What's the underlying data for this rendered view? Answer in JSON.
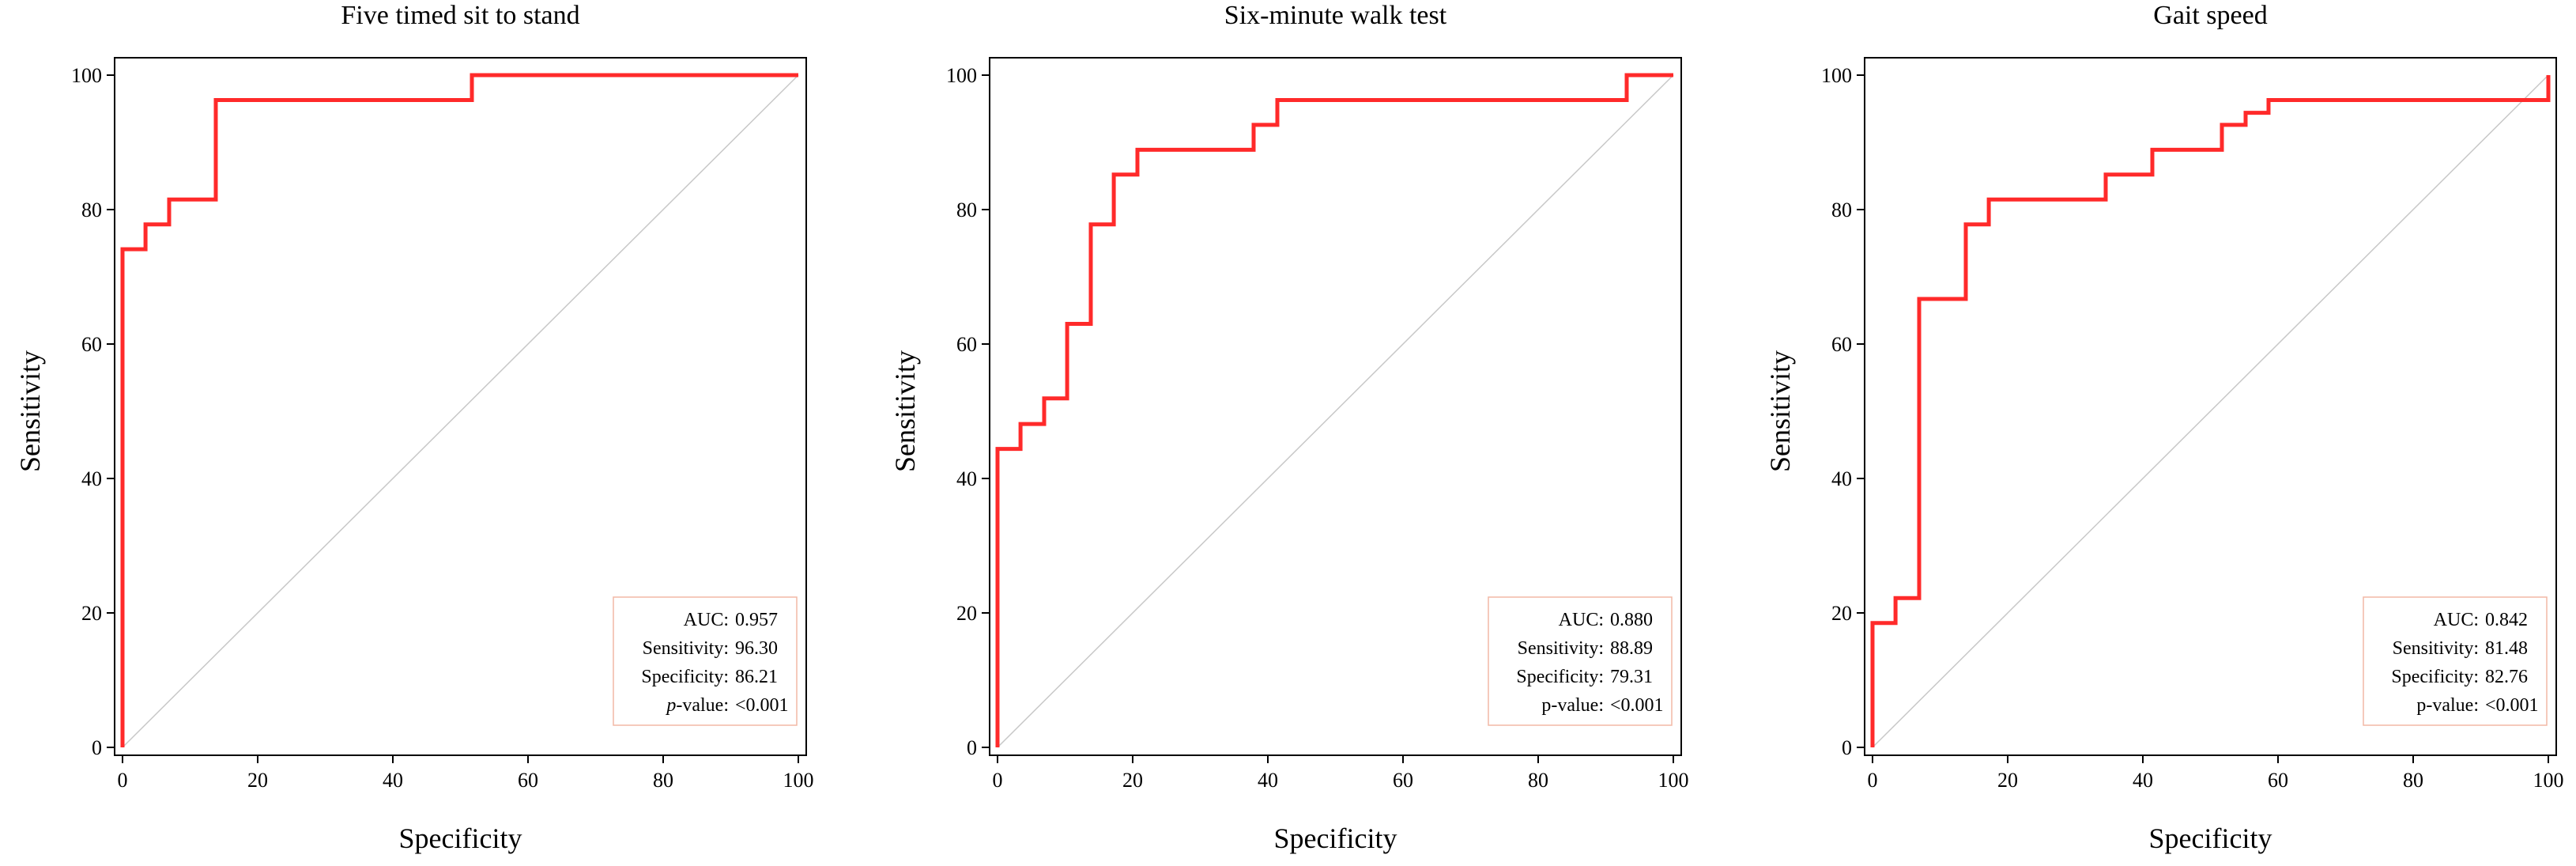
{
  "colors": {
    "roc_line": "#ff2a2a",
    "legend_border": "#f2b9a6",
    "diagonal": "#c8c8c8"
  },
  "chart_data": [
    {
      "type": "line",
      "title": "Five timed sit to stand",
      "xlabel": "Specificity",
      "ylabel": "Sensitivity",
      "xlim": [
        0,
        100
      ],
      "ylim": [
        0,
        100
      ],
      "xticks": [
        "0",
        "20",
        "40",
        "60",
        "80",
        "100"
      ],
      "yticks": [
        "0",
        "20",
        "40",
        "60",
        "80",
        "100"
      ],
      "reference_line": "diagonal",
      "series": [
        {
          "name": "ROC",
          "x": [
            0,
            0,
            0.5,
            0.5,
            3.4,
            3.4,
            6.9,
            6.9,
            13.8,
            13.8,
            51.7,
            51.7,
            100
          ],
          "y": [
            0,
            74.1,
            74.1,
            74.1,
            74.1,
            77.8,
            77.8,
            81.5,
            81.5,
            96.3,
            96.3,
            100,
            100
          ]
        }
      ],
      "legend": {
        "auc_label": "AUC:",
        "auc": "0.957",
        "sensitivity_label": "Sensitivity:",
        "sensitivity": "96.30",
        "specificity_label": "Specificity:",
        "specificity": "86.21",
        "p_italic": "p",
        "p_label": "-value:",
        "p_value": "<0.001",
        "placement": "bottom-right"
      }
    },
    {
      "type": "line",
      "title": "Six-minute walk test",
      "xlabel": "Specificity",
      "ylabel": "Sensitivity",
      "xlim": [
        0,
        100
      ],
      "ylim": [
        0,
        100
      ],
      "xticks": [
        "0",
        "20",
        "40",
        "60",
        "80",
        "100"
      ],
      "yticks": [
        "0",
        "20",
        "40",
        "60",
        "80",
        "100"
      ],
      "reference_line": "diagonal",
      "series": [
        {
          "name": "ROC",
          "x": [
            0,
            0,
            3.4,
            3.4,
            6.9,
            6.9,
            10.3,
            10.3,
            13.8,
            13.8,
            17.2,
            17.2,
            20.7,
            20.7,
            37.9,
            37.9,
            41.4,
            41.4,
            93.1,
            93.1,
            100
          ],
          "y": [
            0,
            44.4,
            44.4,
            48.1,
            48.1,
            51.9,
            51.9,
            63.0,
            63.0,
            77.8,
            77.8,
            85.2,
            85.2,
            88.9,
            88.9,
            92.6,
            92.6,
            96.3,
            96.3,
            100,
            100
          ]
        }
      ],
      "legend": {
        "auc_label": "AUC:",
        "auc": "0.880",
        "sensitivity_label": "Sensitivity:",
        "sensitivity": "88.89",
        "specificity_label": "Specificity:",
        "specificity": "79.31",
        "p_italic": "",
        "p_label": "p-value:",
        "p_value": "<0.001",
        "placement": "bottom-right"
      }
    },
    {
      "type": "line",
      "title": "Gait speed",
      "xlabel": "Specificity",
      "ylabel": "Sensitivity",
      "xlim": [
        0,
        100
      ],
      "ylim": [
        0,
        100
      ],
      "xticks": [
        "0",
        "20",
        "40",
        "60",
        "80",
        "100"
      ],
      "yticks": [
        "0",
        "20",
        "40",
        "60",
        "80",
        "100"
      ],
      "reference_line": "diagonal",
      "series": [
        {
          "name": "ROC",
          "x": [
            0,
            0,
            3.4,
            3.4,
            6.9,
            6.9,
            13.8,
            13.8,
            17.2,
            17.2,
            31.0,
            31.0,
            34.5,
            34.5,
            37.9,
            37.9,
            41.4,
            41.4,
            51.7,
            51.7,
            55.2,
            55.2,
            58.6,
            58.6,
            100,
            100
          ],
          "y": [
            0,
            18.5,
            18.5,
            22.2,
            22.2,
            66.7,
            66.7,
            77.8,
            77.8,
            81.5,
            81.5,
            81.5,
            81.5,
            85.2,
            85.2,
            85.2,
            85.2,
            88.9,
            88.9,
            92.6,
            92.6,
            94.4,
            94.4,
            96.3,
            96.3,
            100
          ]
        }
      ],
      "legend": {
        "auc_label": "AUC:",
        "auc": "0.842",
        "sensitivity_label": "Sensitivity:",
        "sensitivity": "81.48",
        "specificity_label": "Specificity:",
        "specificity": "82.76",
        "p_italic": "",
        "p_label": "p-value:",
        "p_value": "<0.001",
        "placement": "bottom-right"
      }
    }
  ]
}
